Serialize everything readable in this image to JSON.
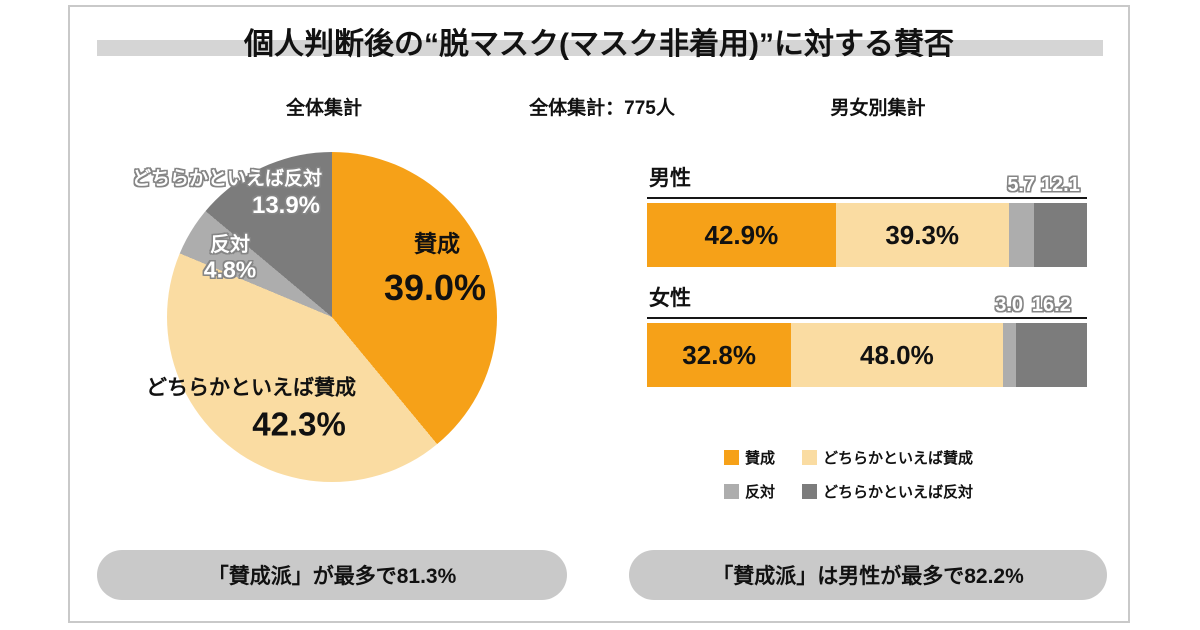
{
  "title": "個人判断後の“脱マスク(マスク非着用)”に対する賛否",
  "headers": {
    "pie_section": "全体集計",
    "total": "全体集計：775人",
    "bar_section": "男女別集計"
  },
  "colors": {
    "agree": "#F6A118",
    "somewhat_agree": "#FADCA2",
    "oppose": "#ADADAD",
    "somewhat_oppose": "#7C7C7C",
    "title_bar": "#D5D5D5",
    "pill_bg": "#C9C9C9"
  },
  "chart_data": [
    {
      "type": "pie",
      "title": "全体集計",
      "labels": [
        "賛成",
        "どちらかといえば賛成",
        "反対",
        "どちらかといえば反対"
      ],
      "values": [
        39.0,
        42.3,
        4.8,
        13.9
      ],
      "unit": "%",
      "start_angle": "top",
      "direction": "clockwise"
    },
    {
      "type": "bar",
      "subtype": "horizontal-stacked",
      "title": "男女別集計",
      "categories": [
        "男性",
        "女性"
      ],
      "series": [
        {
          "name": "賛成",
          "values": [
            42.9,
            32.8
          ]
        },
        {
          "name": "どちらかといえば賛成",
          "values": [
            39.3,
            48.0
          ]
        },
        {
          "name": "反対",
          "values": [
            5.7,
            3.0
          ]
        },
        {
          "name": "どちらかといえば反対",
          "values": [
            12.1,
            16.2
          ]
        }
      ],
      "unit": "%",
      "xlim": [
        0,
        100
      ],
      "legend_position": "bottom"
    }
  ],
  "pie_display": {
    "agree": {
      "name": "賛成",
      "value": "39.0%"
    },
    "somewhat_agree": {
      "name": "どちらかといえば賛成",
      "value": "42.3%"
    },
    "oppose": {
      "name": "反対",
      "value": "4.8%"
    },
    "somewhat_oppose": {
      "name": "どちらかといえば反対",
      "value": "13.9%"
    }
  },
  "bars_display": {
    "rows": [
      {
        "label": "男性",
        "agree": "42.9%",
        "somewhat_agree": "39.3%",
        "oppose": "5.7",
        "somewhat_oppose": "12.1"
      },
      {
        "label": "女性",
        "agree": "32.8%",
        "somewhat_agree": "48.0%",
        "oppose": "3.0",
        "somewhat_oppose": "16.2"
      }
    ]
  },
  "legend": {
    "agree": "賛成",
    "somewhat_agree": "どちらかといえば賛成",
    "oppose": "反対",
    "somewhat_oppose": "どちらかといえば反対"
  },
  "footers": {
    "left": "「賛成派」が最多で81.3%",
    "right": "「賛成派」は男性が最多で82.2%"
  }
}
